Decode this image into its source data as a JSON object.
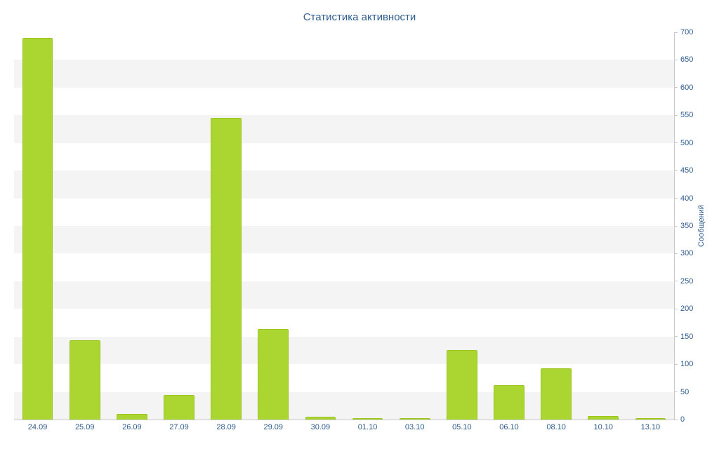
{
  "title": "Статистика активности",
  "y_axis": {
    "label": "Сообщений",
    "min": 0,
    "max": 700,
    "step": 50
  },
  "colors": {
    "bar": "#abd531",
    "barBorder": "#9cc41e",
    "text": "#2e5c8f",
    "band": "#f4f4f4",
    "axisLine": "#c9c9c9"
  },
  "chart_data": {
    "type": "bar",
    "title": "Статистика активности",
    "categories": [
      "24.09",
      "25.09",
      "26.09",
      "27.09",
      "28.09",
      "29.09",
      "30.09",
      "01.10",
      "03.10",
      "05.10",
      "06.10",
      "08.10",
      "10.10",
      "13.10"
    ],
    "values": [
      690,
      143,
      10,
      45,
      545,
      163,
      5,
      3,
      3,
      125,
      62,
      93,
      6,
      3
    ],
    "xlabel": "",
    "ylabel": "Сообщений",
    "ylim": [
      0,
      700
    ],
    "ytick_step": 50,
    "grid": "alternating-horizontal-bands",
    "legend": "none",
    "y_axis_position": "right"
  }
}
